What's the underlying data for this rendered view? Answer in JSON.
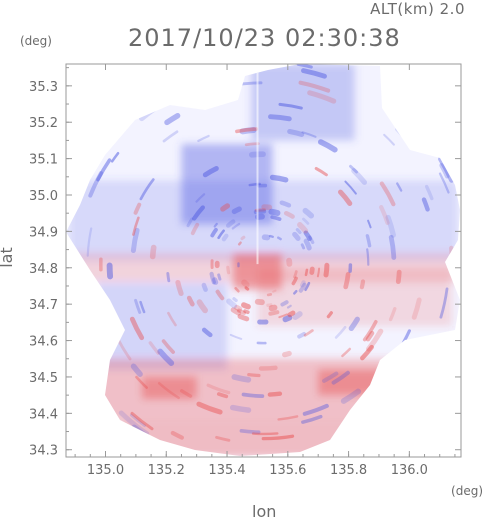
{
  "header": {
    "altitude_label": "ALT(km)  2.0",
    "timestamp": "2017/10/23 02:30:38"
  },
  "axes": {
    "y_unit": "(deg)",
    "x_unit": "(deg)",
    "xlabel": "lon",
    "ylabel": "lat"
  },
  "chart_data": {
    "type": "heatmap",
    "title": "2017/10/23 02:30:38",
    "subtitle": "ALT(km)  2.0",
    "xlabel": "lon",
    "ylabel": "lat",
    "xlim": [
      134.87,
      136.17
    ],
    "ylim": [
      34.28,
      35.36
    ],
    "x_ticks": [
      135.0,
      135.2,
      135.4,
      135.6,
      135.8,
      136.0
    ],
    "x_tick_labels": [
      "135.0",
      "135.2",
      "135.4",
      "135.6",
      "135.8",
      "136.0"
    ],
    "y_ticks": [
      34.3,
      34.4,
      34.5,
      34.6,
      34.7,
      34.8,
      34.9,
      35.0,
      35.1,
      35.2,
      35.3
    ],
    "y_tick_labels": [
      "34.3",
      "34.4",
      "34.5",
      "34.6",
      "34.7",
      "34.8",
      "34.9",
      "35.0",
      "35.1",
      "35.2",
      "35.3"
    ],
    "grid": false,
    "radar_center": {
      "lon": 135.52,
      "lat": 34.81
    },
    "colors": {
      "toward": "#4a55e0",
      "away": "#e84a4a",
      "neutral": "#ffffff"
    },
    "regions": [
      {
        "lon_range": [
          134.88,
          136.16
        ],
        "lat_range": [
          34.82,
          35.04
        ],
        "polarity": "toward",
        "level": 0.3
      },
      {
        "lon_range": [
          135.25,
          135.55
        ],
        "lat_range": [
          34.92,
          35.14
        ],
        "polarity": "toward",
        "level": 0.7
      },
      {
        "lon_range": [
          135.48,
          135.82
        ],
        "lat_range": [
          35.15,
          35.36
        ],
        "polarity": "toward",
        "level": 0.5
      },
      {
        "lon_range": [
          134.88,
          136.16
        ],
        "lat_range": [
          34.76,
          34.84
        ],
        "polarity": "away",
        "level": 0.35
      },
      {
        "lon_range": [
          135.42,
          135.58
        ],
        "lat_range": [
          34.74,
          34.84
        ],
        "polarity": "away",
        "level": 0.85
      },
      {
        "lon_range": [
          135.5,
          136.14
        ],
        "lat_range": [
          34.64,
          34.8
        ],
        "polarity": "away",
        "level": 0.3
      },
      {
        "lon_range": [
          134.97,
          135.4
        ],
        "lat_range": [
          34.52,
          34.76
        ],
        "polarity": "toward",
        "level": 0.35
      },
      {
        "lon_range": [
          134.97,
          135.95
        ],
        "lat_range": [
          34.38,
          34.55
        ],
        "polarity": "away",
        "level": 0.55
      },
      {
        "lon_range": [
          135.05,
          135.85
        ],
        "lat_range": [
          34.28,
          34.38
        ],
        "polarity": "away",
        "level": 0.6
      },
      {
        "lon_range": [
          135.7,
          135.95
        ],
        "lat_range": [
          34.45,
          34.52
        ],
        "polarity": "away",
        "level": 0.8
      },
      {
        "lon_range": [
          135.12,
          135.3
        ],
        "lat_range": [
          34.44,
          34.5
        ],
        "polarity": "away",
        "level": 0.8
      }
    ]
  }
}
